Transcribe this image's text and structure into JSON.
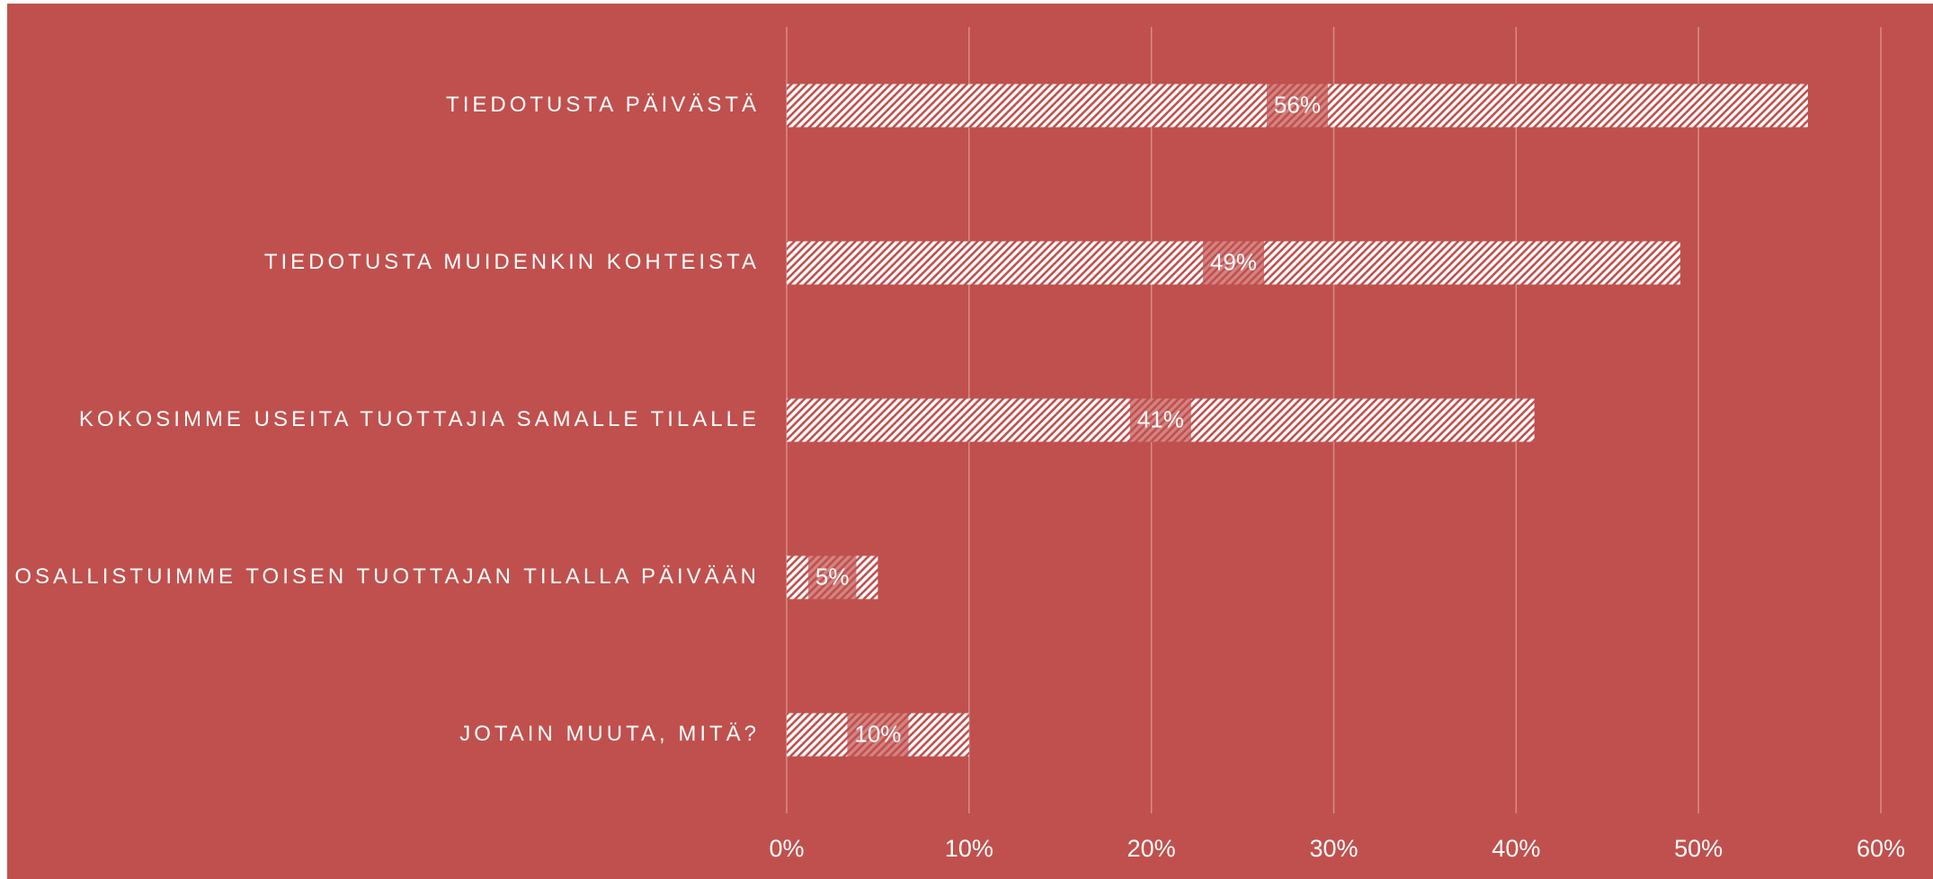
{
  "chart_data": {
    "type": "bar",
    "orientation": "horizontal",
    "categories": [
      "TIEDOTUSTA PÄIVÄSTÄ",
      "TIEDOTUSTA MUIDENKIN KOHTEISTA",
      "KOKOSIMME USEITA TUOTTAJIA SAMALLE TILALLE",
      "OSALLISTUIMME TOISEN TUOTTAJAN TILALLA PÄIVÄÄN",
      "JOTAIN MUUTA, MITÄ?"
    ],
    "values": [
      56,
      49,
      41,
      5,
      10
    ],
    "value_labels": [
      "56%",
      "49%",
      "41%",
      "5%",
      "10%"
    ],
    "color": "#ffffff",
    "background": "#c0504d",
    "xlim": [
      0,
      60
    ],
    "xticks": [
      {
        "value": 0,
        "label": "0%"
      },
      {
        "value": 10,
        "label": "10%"
      },
      {
        "value": 20,
        "label": "20%"
      },
      {
        "value": 30,
        "label": "30%"
      },
      {
        "value": 40,
        "label": "40%"
      },
      {
        "value": 50,
        "label": "50%"
      },
      {
        "value": 60,
        "label": "60%"
      }
    ],
    "grid": true
  }
}
